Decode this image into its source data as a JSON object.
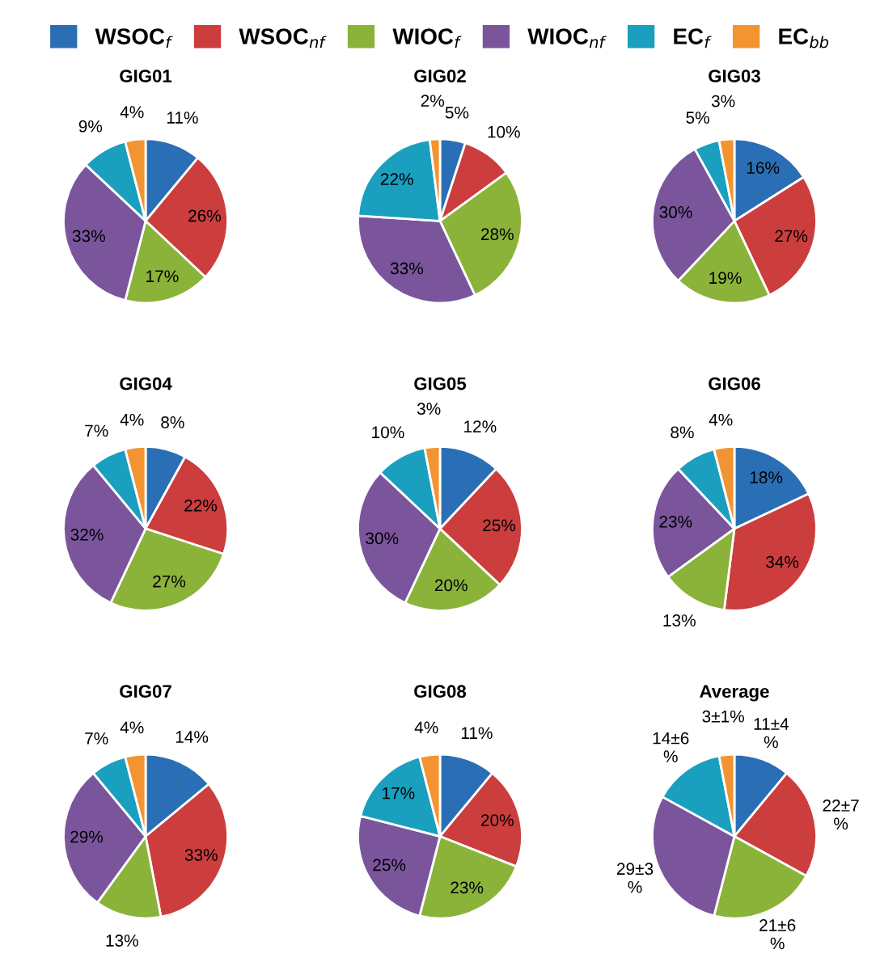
{
  "chart_data": [
    {
      "type": "pie",
      "title": "GIG01",
      "legend": "top",
      "categories": [
        "WSOC$_{f}$",
        "WSOC$_{nf}$",
        "WIOC$_{f}$",
        "WIOC$_{nf}$",
        "EC$_{f}$",
        "EC$_{bb}$"
      ],
      "colors": [
        "#2a6fb5",
        "#cc3d3d",
        "#8bb33a",
        "#7b559c",
        "#1a9fbf",
        "#f39433"
      ],
      "values": [
        11,
        26,
        17,
        33,
        9,
        4
      ],
      "value_labels": [
        "11%",
        "26%",
        "17%",
        "33%",
        "9%",
        "4%"
      ]
    },
    {
      "type": "pie",
      "title": "GIG02",
      "categories": [
        null,
        null,
        null,
        null,
        null,
        null
      ],
      "colors": [
        "#2a6fb5",
        "#cc3d3d",
        "#8bb33a",
        "#7b559c",
        "#1a9fbf",
        "#f39433"
      ],
      "values": [
        5,
        10,
        28,
        33,
        22,
        2
      ],
      "value_labels": [
        "5%",
        "10%",
        "28%",
        "33%",
        "22%",
        "2%"
      ]
    },
    {
      "type": "pie",
      "title": "GIG03",
      "categories": [
        null,
        null,
        null,
        null,
        null,
        null
      ],
      "colors": [
        "#2a6fb5",
        "#cc3d3d",
        "#8bb33a",
        "#7b559c",
        "#1a9fbf",
        "#f39433"
      ],
      "values": [
        16,
        27,
        19,
        30,
        5,
        3
      ],
      "value_labels": [
        "16%",
        "27%",
        "19%",
        "30%",
        "5%",
        "3%"
      ]
    },
    {
      "type": "pie",
      "title": "GIG04",
      "categories": [
        null,
        null,
        null,
        null,
        null,
        null
      ],
      "colors": [
        "#2a6fb5",
        "#cc3d3d",
        "#8bb33a",
        "#7b559c",
        "#1a9fbf",
        "#f39433"
      ],
      "values": [
        8,
        22,
        27,
        32,
        7,
        4
      ],
      "value_labels": [
        "8%",
        "22%",
        "27%",
        "32%",
        "7%",
        "4%"
      ]
    },
    {
      "type": "pie",
      "title": "GIG05",
      "categories": [
        null,
        null,
        null,
        null,
        null,
        null
      ],
      "colors": [
        "#2a6fb5",
        "#cc3d3d",
        "#8bb33a",
        "#7b559c",
        "#1a9fbf",
        "#f39433"
      ],
      "values": [
        12,
        25,
        20,
        30,
        10,
        3
      ],
      "value_labels": [
        "12%",
        "25%",
        "20%",
        "30%",
        "10%",
        "3%"
      ]
    },
    {
      "type": "pie",
      "title": "GIG06",
      "categories": [
        null,
        null,
        null,
        null,
        null,
        null
      ],
      "colors": [
        "#2a6fb5",
        "#cc3d3d",
        "#8bb33a",
        "#7b559c",
        "#1a9fbf",
        "#f39433"
      ],
      "values": [
        18,
        34,
        13,
        23,
        8,
        4
      ],
      "value_labels": [
        "18%",
        "34%",
        "13%",
        "23%",
        "8%",
        "4%"
      ]
    },
    {
      "type": "pie",
      "title": "GIG07",
      "categories": [
        null,
        null,
        null,
        null,
        null,
        null
      ],
      "colors": [
        "#2a6fb5",
        "#cc3d3d",
        "#8bb33a",
        "#7b559c",
        "#1a9fbf",
        "#f39433"
      ],
      "values": [
        14,
        33,
        13,
        29,
        7,
        4
      ],
      "value_labels": [
        "14%",
        "33%",
        "13%",
        "29%",
        "7%",
        "4%"
      ]
    },
    {
      "type": "pie",
      "title": "GIG08",
      "categories": [
        null,
        null,
        null,
        null,
        null,
        null
      ],
      "colors": [
        "#2a6fb5",
        "#cc3d3d",
        "#8bb33a",
        "#7b559c",
        "#1a9fbf",
        "#f39433"
      ],
      "values": [
        11,
        20,
        23,
        25,
        17,
        4
      ],
      "value_labels": [
        "11%",
        "20%",
        "23%",
        "25%",
        "17%",
        "4%"
      ]
    },
    {
      "type": "pie",
      "title": "Average",
      "categories": [
        null,
        null,
        null,
        null,
        null,
        null
      ],
      "colors": [
        "#2a6fb5",
        "#cc3d3d",
        "#8bb33a",
        "#7b559c",
        "#1a9fbf",
        "#f39433"
      ],
      "values": [
        11,
        22,
        21,
        29,
        14,
        3
      ],
      "value_labels": [
        "11±4 %",
        "22±7 %",
        "21±6 %",
        "29±3 %",
        "14±6 %",
        "3±1%"
      ]
    }
  ]
}
